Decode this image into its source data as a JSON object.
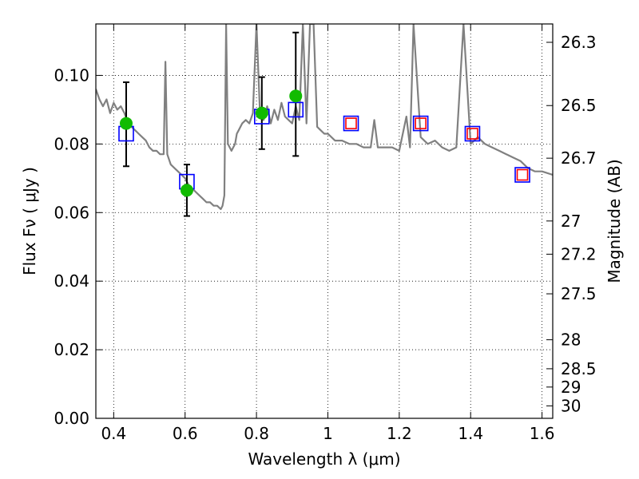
{
  "chart_data": {
    "type": "scatter",
    "title": "",
    "xlabel": "Wavelength  λ (μm)",
    "ylabel": "Flux  Fν  ( μJy )",
    "y2label": "Magnitude (AB)",
    "xlim": [
      0.35,
      1.63
    ],
    "ylim": [
      0.0,
      0.115
    ],
    "grid": true,
    "x_ticks": [
      0.4,
      0.6,
      0.8,
      1.0,
      1.2,
      1.4,
      1.6
    ],
    "x_tick_labels": [
      "0.4",
      "0.6",
      "0.8",
      "1",
      "1.2",
      "1.4",
      "1.6"
    ],
    "y_ticks": [
      0.0,
      0.02,
      0.04,
      0.06,
      0.08,
      0.1
    ],
    "y_tick_labels": [
      "0.00",
      "0.02",
      "0.04",
      "0.06",
      "0.08",
      "0.10"
    ],
    "y2_ticks": [
      26.3,
      26.5,
      26.7,
      27,
      27.2,
      27.5,
      28,
      28.5,
      29,
      30
    ],
    "y2_tick_labels": [
      "26.3",
      "26.5",
      "26.7",
      "27",
      "27.2",
      "27.5",
      "28",
      "28.5",
      "29",
      "30"
    ],
    "series": [
      {
        "kind": "line",
        "color": "#808080",
        "x": [
          0.35,
          0.36,
          0.37,
          0.38,
          0.39,
          0.4,
          0.41,
          0.42,
          0.43,
          0.44,
          0.45,
          0.46,
          0.47,
          0.48,
          0.49,
          0.5,
          0.51,
          0.52,
          0.53,
          0.54,
          0.545,
          0.55,
          0.56,
          0.57,
          0.58,
          0.59,
          0.6,
          0.61,
          0.62,
          0.63,
          0.64,
          0.65,
          0.66,
          0.67,
          0.68,
          0.69,
          0.7,
          0.705,
          0.71,
          0.715,
          0.72,
          0.73,
          0.74,
          0.745,
          0.75,
          0.76,
          0.77,
          0.78,
          0.79,
          0.8,
          0.81,
          0.82,
          0.83,
          0.84,
          0.85,
          0.86,
          0.87,
          0.88,
          0.89,
          0.9,
          0.91,
          0.92,
          0.93,
          0.94,
          0.95,
          0.96,
          0.97,
          0.98,
          0.99,
          1.0,
          1.02,
          1.04,
          1.06,
          1.08,
          1.1,
          1.12,
          1.13,
          1.14,
          1.16,
          1.18,
          1.2,
          1.22,
          1.23,
          1.24,
          1.26,
          1.28,
          1.3,
          1.32,
          1.34,
          1.36,
          1.38,
          1.4,
          1.42,
          1.44,
          1.46,
          1.48,
          1.5,
          1.52,
          1.54,
          1.56,
          1.58,
          1.6,
          1.63
        ],
        "y": [
          0.096,
          0.093,
          0.091,
          0.093,
          0.089,
          0.092,
          0.09,
          0.091,
          0.089,
          0.086,
          0.085,
          0.084,
          0.083,
          0.082,
          0.081,
          0.079,
          0.078,
          0.078,
          0.077,
          0.077,
          0.104,
          0.077,
          0.074,
          0.073,
          0.072,
          0.071,
          0.07,
          0.068,
          0.067,
          0.066,
          0.065,
          0.064,
          0.063,
          0.063,
          0.062,
          0.062,
          0.061,
          0.062,
          0.065,
          0.115,
          0.08,
          0.078,
          0.08,
          0.083,
          0.084,
          0.086,
          0.087,
          0.086,
          0.089,
          0.115,
          0.088,
          0.087,
          0.091,
          0.086,
          0.09,
          0.087,
          0.092,
          0.088,
          0.087,
          0.086,
          0.091,
          0.087,
          0.115,
          0.086,
          0.115,
          0.115,
          0.085,
          0.084,
          0.083,
          0.083,
          0.081,
          0.081,
          0.08,
          0.08,
          0.079,
          0.079,
          0.087,
          0.079,
          0.079,
          0.079,
          0.078,
          0.088,
          0.079,
          0.115,
          0.082,
          0.08,
          0.081,
          0.079,
          0.078,
          0.079,
          0.115,
          0.08,
          0.082,
          0.08,
          0.079,
          0.078,
          0.077,
          0.076,
          0.075,
          0.073,
          0.072,
          0.072,
          0.071
        ]
      },
      {
        "kind": "open-square",
        "edge_color": "#0000ff",
        "x": [
          0.435,
          0.605,
          0.815,
          0.91,
          1.065,
          1.26,
          1.405,
          1.545
        ],
        "y": [
          0.083,
          0.069,
          0.088,
          0.09,
          0.086,
          0.086,
          0.083,
          0.071
        ]
      },
      {
        "kind": "open-square",
        "edge_color": "#ff0000",
        "x": [
          1.065,
          1.26,
          1.405,
          1.545
        ],
        "y": [
          0.086,
          0.086,
          0.083,
          0.071
        ]
      },
      {
        "kind": "filled-circle",
        "color": "#11bb00",
        "x": [
          0.435,
          0.605,
          0.815,
          0.91
        ],
        "y": [
          0.086,
          0.0665,
          0.089,
          0.094
        ],
        "yerr_low": [
          0.0735,
          0.059,
          0.0785,
          0.0765
        ],
        "yerr_high": [
          0.098,
          0.074,
          0.0995,
          0.1125
        ]
      }
    ]
  }
}
